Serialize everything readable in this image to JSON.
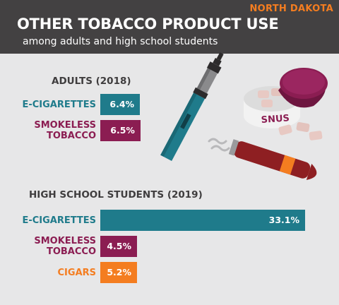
{
  "header": {
    "state": "NORTH DAKOTA",
    "title": "OTHER TOBACCO PRODUCT USE",
    "subtitle": "among adults and high school students"
  },
  "illustration": {
    "snus_label": "SNUS",
    "icons": [
      "e-cigarette-icon",
      "snus-tin-icon",
      "cigar-icon"
    ]
  },
  "colors": {
    "header_bg": "#434142",
    "accent_orange": "#f47d20",
    "e_cigarette_teal": "#1f7b8b",
    "smokeless_maroon": "#8b1d52",
    "cigar_orange": "#f47d20",
    "page_bg": "#e7e7e8"
  },
  "chart_data": [
    {
      "type": "bar",
      "orientation": "horizontal",
      "title": "ADULTS (2018)",
      "categories": [
        "E-CIGARETTES",
        "SMOKELESS TOBACCO"
      ],
      "category_lines": [
        [
          "E-CIGARETTES"
        ],
        [
          "SMOKELESS",
          "TOBACCO"
        ]
      ],
      "values": [
        6.4,
        6.5
      ],
      "value_labels": [
        "6.4%",
        "6.5%"
      ],
      "unit": "%"
    },
    {
      "type": "bar",
      "orientation": "horizontal",
      "title": "HIGH SCHOOL STUDENTS (2019)",
      "categories": [
        "E-CIGARETTES",
        "SMOKELESS TOBACCO",
        "CIGARS"
      ],
      "category_lines": [
        [
          "E-CIGARETTES"
        ],
        [
          "SMOKELESS",
          "TOBACCO"
        ],
        [
          "CIGARS"
        ]
      ],
      "values": [
        33.1,
        4.5,
        5.2
      ],
      "value_labels": [
        "33.1%",
        "4.5%",
        "5.2%"
      ],
      "unit": "%"
    }
  ]
}
